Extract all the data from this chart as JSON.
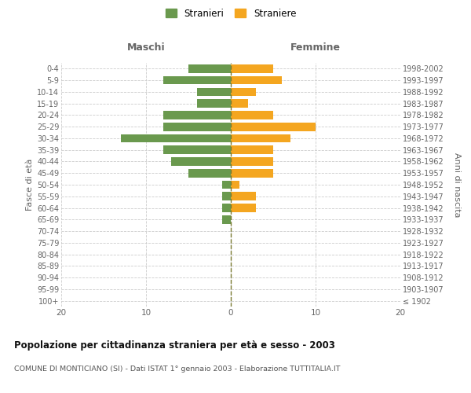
{
  "age_groups": [
    "100+",
    "95-99",
    "90-94",
    "85-89",
    "80-84",
    "75-79",
    "70-74",
    "65-69",
    "60-64",
    "55-59",
    "50-54",
    "45-49",
    "40-44",
    "35-39",
    "30-34",
    "25-29",
    "20-24",
    "15-19",
    "10-14",
    "5-9",
    "0-4"
  ],
  "birth_years": [
    "≤ 1902",
    "1903-1907",
    "1908-1912",
    "1913-1917",
    "1918-1922",
    "1923-1927",
    "1928-1932",
    "1933-1937",
    "1938-1942",
    "1943-1947",
    "1948-1952",
    "1953-1957",
    "1958-1962",
    "1963-1967",
    "1968-1972",
    "1973-1977",
    "1978-1982",
    "1983-1987",
    "1988-1992",
    "1993-1997",
    "1998-2002"
  ],
  "males": [
    0,
    0,
    0,
    0,
    0,
    0,
    0,
    1,
    1,
    1,
    1,
    5,
    7,
    8,
    13,
    8,
    8,
    4,
    4,
    8,
    5
  ],
  "females": [
    0,
    0,
    0,
    0,
    0,
    0,
    0,
    0,
    3,
    3,
    1,
    5,
    5,
    5,
    7,
    10,
    5,
    2,
    3,
    6,
    5
  ],
  "male_color": "#6a994e",
  "female_color": "#f4a620",
  "grid_color": "#cccccc",
  "center_line_color": "#7a7a30",
  "title": "Popolazione per cittadinanza straniera per età e sesso - 2003",
  "subtitle": "COMUNE DI MONTICIANO (SI) - Dati ISTAT 1° gennaio 2003 - Elaborazione TUTTITALIA.IT",
  "label_maschi": "Maschi",
  "label_femmine": "Femmine",
  "ylabel_left": "Fasce di età",
  "ylabel_right": "Anni di nascita",
  "xlim": 20,
  "legend_stranieri": "Stranieri",
  "legend_straniere": "Straniere"
}
